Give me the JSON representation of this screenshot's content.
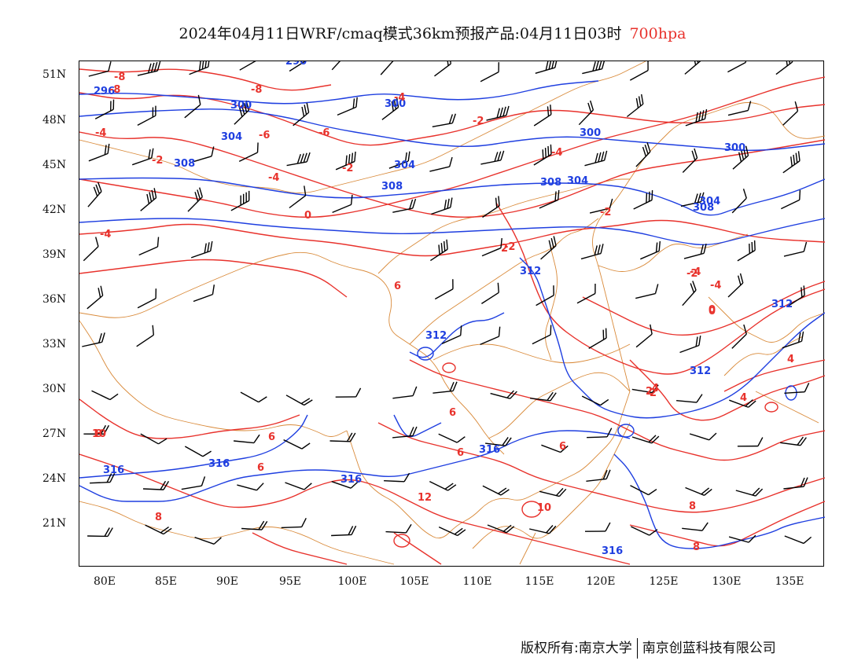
{
  "title": {
    "main": "2024年04月11日WRF/cmaq模式36km预报产品:04月11日03时",
    "level": "700hpa"
  },
  "colors": {
    "temperature": "#e8322c",
    "geopotential": "#1f3fe0",
    "boundary": "#d98a3a",
    "wind": "#000000"
  },
  "axes": {
    "lat_labels": [
      "51N",
      "48N",
      "45N",
      "42N",
      "39N",
      "36N",
      "33N",
      "30N",
      "27N",
      "24N",
      "21N"
    ],
    "lon_labels": [
      "80E",
      "85E",
      "90E",
      "95E",
      "100E",
      "105E",
      "110E",
      "115E",
      "120E",
      "125E",
      "130E",
      "135E"
    ]
  },
  "geopotential_labels": [
    "296",
    "300",
    "304",
    "308",
    "312",
    "316"
  ],
  "temperature_labels": [
    "-8",
    "-6",
    "-4",
    "-2",
    "0",
    "2",
    "4",
    "6",
    "8",
    "10",
    "12"
  ],
  "footer": {
    "copyright": "版权所有:南京大学",
    "company": "南京创蓝科技有限公司"
  }
}
